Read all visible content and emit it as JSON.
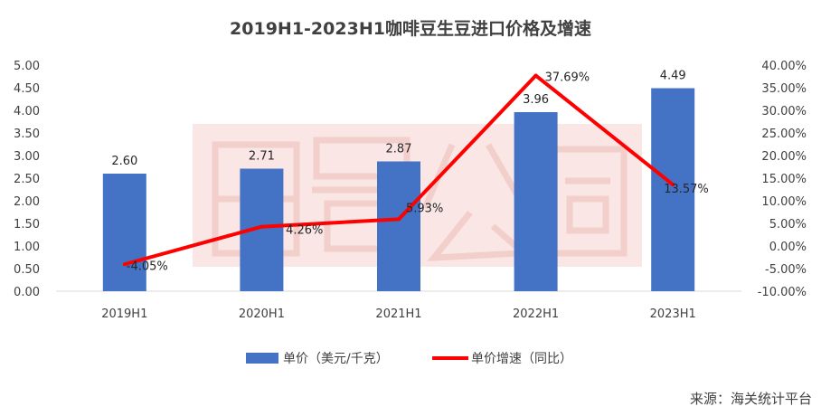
{
  "chart_data": {
    "type": "bar",
    "title": "2019H1-2023H1咖啡豆生豆进口价格及增速",
    "categories": [
      "2019H1",
      "2020H1",
      "2021H1",
      "2022H1",
      "2023H1"
    ],
    "series": [
      {
        "name": "单价（美元/千克）",
        "type": "bar",
        "axis": "left",
        "values": [
          2.6,
          2.71,
          2.87,
          3.96,
          4.49
        ],
        "labels": [
          "2.60",
          "2.71",
          "2.87",
          "3.96",
          "4.49"
        ],
        "color": "#4472C4"
      },
      {
        "name": "单价增速（同比）",
        "type": "line",
        "axis": "right",
        "values": [
          -4.05,
          4.26,
          5.93,
          37.69,
          13.57
        ],
        "labels": [
          "-4.05%",
          "4.26%",
          "5.93%",
          "37.69%",
          "13.57%"
        ],
        "color": "#FF0000"
      }
    ],
    "left_axis": {
      "ylim": [
        0,
        5
      ],
      "ticks": [
        "0.00",
        "0.50",
        "1.00",
        "1.50",
        "2.00",
        "2.50",
        "3.00",
        "3.50",
        "4.00",
        "4.50",
        "5.00"
      ]
    },
    "right_axis": {
      "ylim": [
        -10,
        40
      ],
      "ticks": [
        "-10.00%",
        "-5.00%",
        "0.00%",
        "5.00%",
        "10.00%",
        "15.00%",
        "20.00%",
        "25.00%",
        "30.00%",
        "35.00%",
        "40.00%"
      ]
    },
    "legend_position": "bottom",
    "grid": false
  },
  "source_note": "来源：海关统计平台",
  "watermark": {
    "text": "明亮公司",
    "color": "#F4C7C3"
  }
}
